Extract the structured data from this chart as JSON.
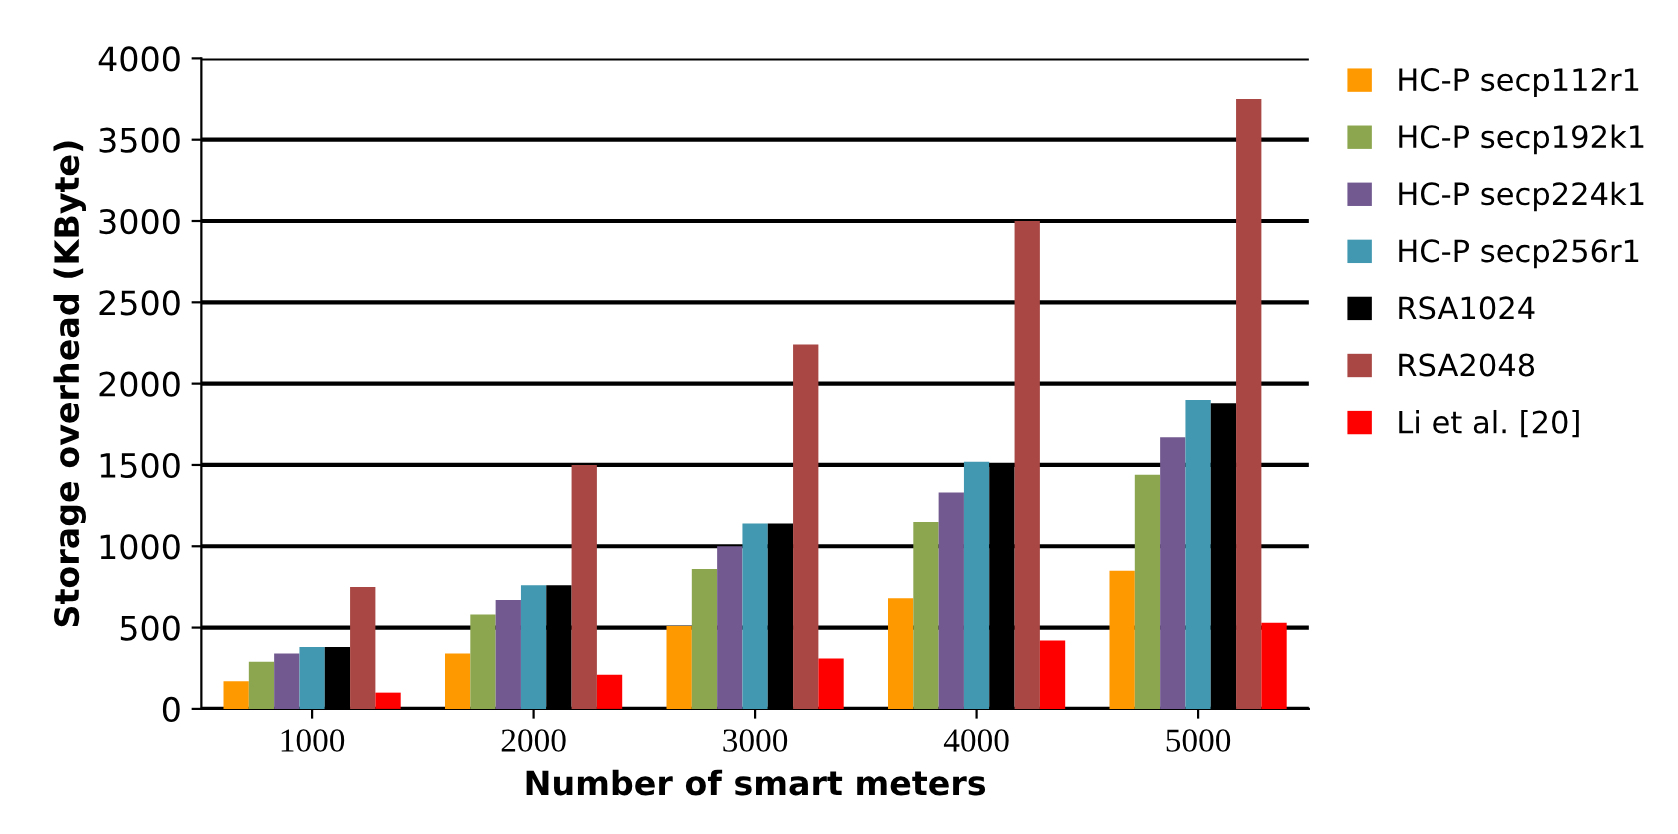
{
  "chart_data": {
    "type": "bar",
    "xlabel": "Number of smart meters",
    "ylabel": "Storage overhead (KByte)",
    "categories": [
      "1000",
      "2000",
      "3000",
      "4000",
      "5000"
    ],
    "series": [
      {
        "name": "HC-P secp112r1",
        "color": "#ff9900",
        "values": [
          170,
          340,
          510,
          680,
          850
        ]
      },
      {
        "name": "HC-P secp192k1",
        "color": "#8ba64e",
        "values": [
          290,
          580,
          860,
          1150,
          1440
        ]
      },
      {
        "name": "HC-P secp224k1",
        "color": "#725a91",
        "values": [
          340,
          670,
          1000,
          1330,
          1670
        ]
      },
      {
        "name": "HC-P secp256r1",
        "color": "#4198b0",
        "values": [
          380,
          760,
          1140,
          1520,
          1900
        ]
      },
      {
        "name": "RSA1024",
        "color": "#000000",
        "values": [
          380,
          760,
          1140,
          1510,
          1880
        ]
      },
      {
        "name": "RSA2048",
        "color": "#a84743",
        "values": [
          750,
          1500,
          2240,
          3000,
          3750
        ]
      },
      {
        "name": "Li et al. [20]",
        "color": "#ff0000",
        "values": [
          100,
          210,
          310,
          420,
          530
        ]
      }
    ],
    "ylim": [
      0,
      4000
    ],
    "yticks": [
      0,
      500,
      1000,
      1500,
      2000,
      2500,
      3000,
      3500,
      4000
    ],
    "grid": "y",
    "legend": "right"
  }
}
